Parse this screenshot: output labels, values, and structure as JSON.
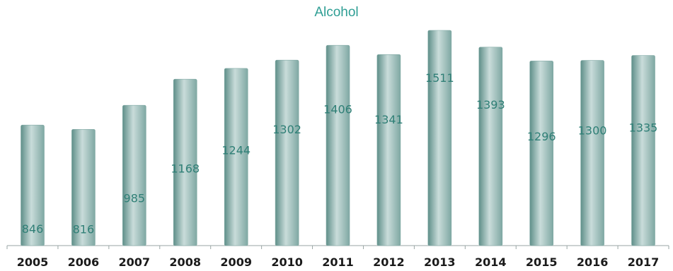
{
  "chart_data": {
    "type": "bar",
    "title": "Alcohol",
    "xlabel": "",
    "ylabel": "",
    "categories": [
      "2005",
      "2006",
      "2007",
      "2008",
      "2009",
      "2010",
      "2011",
      "2012",
      "2013",
      "2014",
      "2015",
      "2016",
      "2017"
    ],
    "values": [
      846,
      816,
      985,
      1168,
      1244,
      1302,
      1406,
      1341,
      1511,
      1393,
      1296,
      1300,
      1335
    ],
    "ylim": [
      0,
      1511
    ],
    "grid": false,
    "legend": "none",
    "colors": {
      "title": "#2e9e94",
      "bar_edge": "#7fa8a3",
      "bar_center": "#c9dcda",
      "bar_side": "#5f8f89",
      "data_label": "#2f7f76",
      "tick_label": "#1a1a1a",
      "axis": "#9aa6a5"
    }
  }
}
